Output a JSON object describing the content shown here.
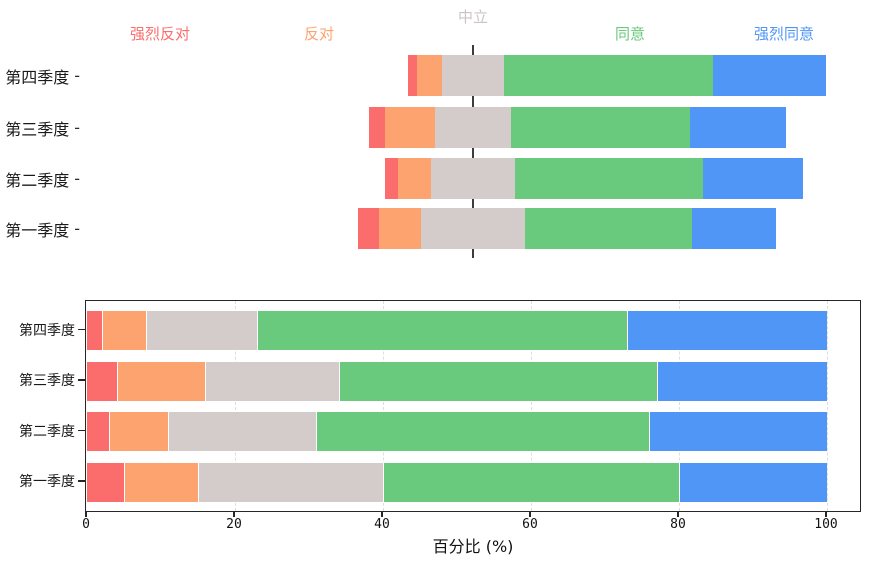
{
  "figure": {
    "background": "#ffffff"
  },
  "palette": {
    "strongly_disagree": "#FB6D6C",
    "disagree": "#FCA36F",
    "neutral": "#D3CCCA",
    "agree": "#69C97C",
    "strongly_agree": "#4F96F6"
  },
  "top_header": {
    "items": [
      {
        "key": "strongly-disagree",
        "label": "强烈反对",
        "color": "#FB6D6C"
      },
      {
        "key": "disagree",
        "label": "反对",
        "color": "#FCA36F"
      },
      {
        "key": "neutral",
        "label": "中立",
        "color": "#CBC4C3"
      },
      {
        "key": "agree",
        "label": "同意",
        "color": "#69C97C"
      },
      {
        "key": "strongly-agree",
        "label": "强烈同意",
        "color": "#4F96F6"
      }
    ]
  },
  "tick_dash": "-",
  "chart_data": [
    {
      "type": "bar",
      "variant": "diverging_stacked_likert",
      "orientation": "horizontal",
      "categories": [
        "第四季度",
        "第三季度",
        "第二季度",
        "第一季度"
      ],
      "series": [
        {
          "key": "strongly_disagree",
          "name": "强烈反对",
          "color": "#FB6D6C",
          "values": [
            2,
            4,
            3,
            5
          ]
        },
        {
          "key": "disagree",
          "name": "反对",
          "color": "#FCA36F",
          "values": [
            6,
            12,
            8,
            10
          ]
        },
        {
          "key": "neutral",
          "name": "中立",
          "color": "#D3CCCA",
          "values": [
            15,
            18,
            20,
            25
          ]
        },
        {
          "key": "agree",
          "name": "同意",
          "color": "#69C97C",
          "values": [
            50,
            43,
            45,
            40
          ]
        },
        {
          "key": "strongly_agree",
          "name": "强烈同意",
          "color": "#4F96F6",
          "values": [
            27,
            23,
            24,
            20
          ]
        }
      ],
      "center_line_label": "中立",
      "units": "percent",
      "legend_position": "top",
      "grid": false
    },
    {
      "type": "bar",
      "variant": "stacked",
      "orientation": "horizontal",
      "categories": [
        "第四季度",
        "第三季度",
        "第二季度",
        "第一季度"
      ],
      "series": [
        {
          "key": "strongly_disagree",
          "name": "强烈反对",
          "color": "#FB6D6C",
          "values": [
            2,
            4,
            3,
            5
          ]
        },
        {
          "key": "disagree",
          "name": "反对",
          "color": "#FCA36F",
          "values": [
            6,
            12,
            8,
            10
          ]
        },
        {
          "key": "neutral",
          "name": "中立",
          "color": "#D3CCCA",
          "values": [
            15,
            18,
            20,
            25
          ]
        },
        {
          "key": "agree",
          "name": "同意",
          "color": "#69C97C",
          "values": [
            50,
            43,
            45,
            40
          ]
        },
        {
          "key": "strongly_agree",
          "name": "强烈同意",
          "color": "#4F96F6",
          "values": [
            27,
            23,
            24,
            20
          ]
        }
      ],
      "xlabel": "百分比 (%)",
      "xticks": [
        "0",
        "20",
        "40",
        "60",
        "80",
        "100"
      ],
      "xlim": [
        0,
        104.8
      ],
      "grid": "vertical-dashed"
    }
  ]
}
